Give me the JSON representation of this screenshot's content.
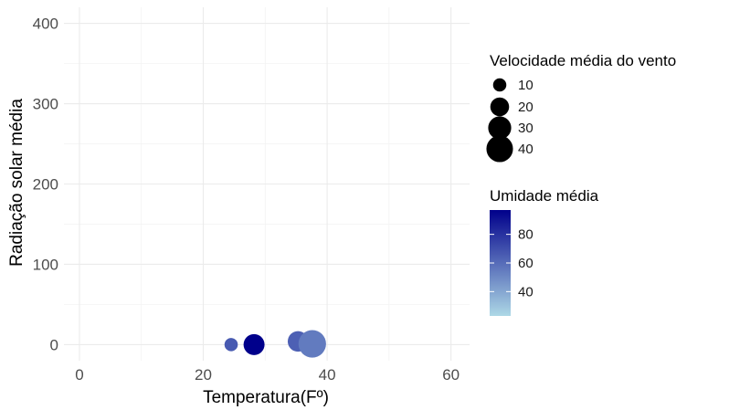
{
  "chart_data": {
    "type": "scatter",
    "xlabel": "Temperatura(Fº)",
    "ylabel": "Radiação solar média",
    "xlim": [
      -2.5,
      63
    ],
    "ylim": [
      -20,
      420
    ],
    "x_ticks": [
      0,
      20,
      40,
      60
    ],
    "y_ticks": [
      0,
      100,
      200,
      300,
      400
    ],
    "grid": true,
    "points": [
      {
        "x": 24.5,
        "y": 0,
        "size_value": 10,
        "color_value": 66
      },
      {
        "x": 28.2,
        "y": 0,
        "size_value": 25,
        "color_value": 97
      },
      {
        "x": 35.3,
        "y": 4,
        "size_value": 24,
        "color_value": 64
      },
      {
        "x": 37.6,
        "y": 1,
        "size_value": 43,
        "color_value": 55
      }
    ],
    "legend": {
      "size": {
        "title": "Velocidade média do vento",
        "breaks": [
          10,
          20,
          30,
          40
        ],
        "labels": [
          "10",
          "20",
          "30",
          "40"
        ]
      },
      "color": {
        "title": "Umidade média",
        "range": [
          23,
          97
        ],
        "breaks": [
          40,
          60,
          80
        ],
        "labels": [
          "40",
          "60",
          "80"
        ],
        "low_color": "#ADD8E6",
        "high_color": "#00008B"
      },
      "placement": "right"
    }
  }
}
